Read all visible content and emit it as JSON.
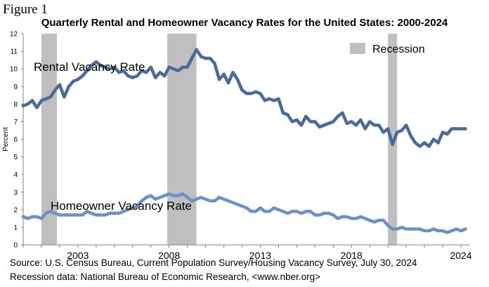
{
  "figure_label": "Figure 1",
  "source_lines": [
    "Source: U.S. Census Bureau, Current Population Survey/Housing Vacancy Survey, July 30, 2024",
    "Recession data: National Bureau of Economic Research, <www.nber.org>"
  ],
  "chart_data": {
    "type": "line",
    "title": "Quarterly Rental and Homeowner Vacancy Rates for the United States: 2000-2024",
    "xlabel": "",
    "ylabel": "Percent",
    "xlim": [
      2000,
      2024.5
    ],
    "ylim": [
      0,
      12
    ],
    "yticks": [
      0,
      1,
      2,
      3,
      4,
      5,
      6,
      7,
      8,
      9,
      10,
      11,
      12
    ],
    "xtick_labels": [
      "2003",
      "2008",
      "2013",
      "2018",
      "2024"
    ],
    "grid": false,
    "legend": {
      "entries": [
        "Recession"
      ],
      "position": "top-right"
    },
    "recessions": [
      {
        "start": 2001.0,
        "end": 2001.85
      },
      {
        "start": 2007.9,
        "end": 2009.5
      },
      {
        "start": 2020.0,
        "end": 2020.5
      }
    ],
    "series": [
      {
        "name": "Rental Vacancy Rate",
        "color": "#4a6a9c",
        "points": [
          [
            2000.0,
            7.9
          ],
          [
            2000.25,
            8.0
          ],
          [
            2000.5,
            8.2
          ],
          [
            2000.75,
            7.8
          ],
          [
            2001.0,
            8.2
          ],
          [
            2001.25,
            8.3
          ],
          [
            2001.5,
            8.4
          ],
          [
            2001.75,
            8.8
          ],
          [
            2002.0,
            9.1
          ],
          [
            2002.25,
            8.4
          ],
          [
            2002.5,
            9.0
          ],
          [
            2002.75,
            9.3
          ],
          [
            2003.0,
            9.4
          ],
          [
            2003.25,
            9.6
          ],
          [
            2003.5,
            9.9
          ],
          [
            2003.75,
            10.2
          ],
          [
            2004.0,
            10.4
          ],
          [
            2004.25,
            10.2
          ],
          [
            2004.5,
            10.1
          ],
          [
            2004.75,
            10.0
          ],
          [
            2005.0,
            10.1
          ],
          [
            2005.25,
            9.8
          ],
          [
            2005.5,
            9.9
          ],
          [
            2005.75,
            9.6
          ],
          [
            2006.0,
            9.5
          ],
          [
            2006.25,
            9.6
          ],
          [
            2006.5,
            9.9
          ],
          [
            2006.75,
            9.8
          ],
          [
            2007.0,
            10.1
          ],
          [
            2007.25,
            9.5
          ],
          [
            2007.5,
            9.8
          ],
          [
            2007.75,
            9.6
          ],
          [
            2008.0,
            10.1
          ],
          [
            2008.25,
            10.0
          ],
          [
            2008.5,
            9.9
          ],
          [
            2008.75,
            10.1
          ],
          [
            2009.0,
            10.1
          ],
          [
            2009.25,
            10.6
          ],
          [
            2009.5,
            11.1
          ],
          [
            2009.75,
            10.7
          ],
          [
            2010.0,
            10.6
          ],
          [
            2010.25,
            10.6
          ],
          [
            2010.5,
            10.3
          ],
          [
            2010.75,
            9.4
          ],
          [
            2011.0,
            9.7
          ],
          [
            2011.25,
            9.2
          ],
          [
            2011.5,
            9.8
          ],
          [
            2011.75,
            9.4
          ],
          [
            2012.0,
            8.8
          ],
          [
            2012.25,
            8.6
          ],
          [
            2012.5,
            8.6
          ],
          [
            2012.75,
            8.7
          ],
          [
            2013.0,
            8.6
          ],
          [
            2013.25,
            8.2
          ],
          [
            2013.5,
            8.3
          ],
          [
            2013.75,
            8.2
          ],
          [
            2014.0,
            8.3
          ],
          [
            2014.25,
            7.5
          ],
          [
            2014.5,
            7.4
          ],
          [
            2014.75,
            7.0
          ],
          [
            2015.0,
            7.1
          ],
          [
            2015.25,
            6.8
          ],
          [
            2015.5,
            7.3
          ],
          [
            2015.75,
            7.0
          ],
          [
            2016.0,
            7.0
          ],
          [
            2016.25,
            6.7
          ],
          [
            2016.5,
            6.8
          ],
          [
            2016.75,
            6.9
          ],
          [
            2017.0,
            7.0
          ],
          [
            2017.25,
            7.3
          ],
          [
            2017.5,
            7.5
          ],
          [
            2017.75,
            6.9
          ],
          [
            2018.0,
            7.0
          ],
          [
            2018.25,
            6.8
          ],
          [
            2018.5,
            7.1
          ],
          [
            2018.75,
            6.6
          ],
          [
            2019.0,
            7.0
          ],
          [
            2019.25,
            6.8
          ],
          [
            2019.5,
            6.8
          ],
          [
            2019.75,
            6.4
          ],
          [
            2020.0,
            6.6
          ],
          [
            2020.25,
            5.7
          ],
          [
            2020.5,
            6.4
          ],
          [
            2020.75,
            6.5
          ],
          [
            2021.0,
            6.8
          ],
          [
            2021.25,
            6.2
          ],
          [
            2021.5,
            5.8
          ],
          [
            2021.75,
            5.6
          ],
          [
            2022.0,
            5.8
          ],
          [
            2022.25,
            5.6
          ],
          [
            2022.5,
            6.0
          ],
          [
            2022.75,
            5.8
          ],
          [
            2023.0,
            6.4
          ],
          [
            2023.25,
            6.3
          ],
          [
            2023.5,
            6.6
          ],
          [
            2023.75,
            6.6
          ],
          [
            2024.0,
            6.6
          ],
          [
            2024.25,
            6.6
          ]
        ]
      },
      {
        "name": "Homeowner Vacancy Rate",
        "color": "#6e90c4",
        "points": [
          [
            2000.0,
            1.6
          ],
          [
            2000.25,
            1.5
          ],
          [
            2000.5,
            1.6
          ],
          [
            2000.75,
            1.6
          ],
          [
            2001.0,
            1.5
          ],
          [
            2001.25,
            1.8
          ],
          [
            2001.5,
            1.9
          ],
          [
            2001.75,
            1.8
          ],
          [
            2002.0,
            1.7
          ],
          [
            2002.25,
            1.7
          ],
          [
            2002.5,
            1.7
          ],
          [
            2002.75,
            1.7
          ],
          [
            2003.0,
            1.7
          ],
          [
            2003.25,
            1.7
          ],
          [
            2003.5,
            1.9
          ],
          [
            2003.75,
            1.8
          ],
          [
            2004.0,
            1.7
          ],
          [
            2004.25,
            1.7
          ],
          [
            2004.5,
            1.7
          ],
          [
            2004.75,
            1.8
          ],
          [
            2005.0,
            1.8
          ],
          [
            2005.25,
            1.8
          ],
          [
            2005.5,
            1.9
          ],
          [
            2005.75,
            2.0
          ],
          [
            2006.0,
            2.1
          ],
          [
            2006.25,
            2.2
          ],
          [
            2006.5,
            2.5
          ],
          [
            2006.75,
            2.7
          ],
          [
            2007.0,
            2.8
          ],
          [
            2007.25,
            2.6
          ],
          [
            2007.5,
            2.7
          ],
          [
            2007.75,
            2.8
          ],
          [
            2008.0,
            2.9
          ],
          [
            2008.25,
            2.8
          ],
          [
            2008.5,
            2.8
          ],
          [
            2008.75,
            2.9
          ],
          [
            2009.0,
            2.7
          ],
          [
            2009.25,
            2.5
          ],
          [
            2009.5,
            2.6
          ],
          [
            2009.75,
            2.7
          ],
          [
            2010.0,
            2.6
          ],
          [
            2010.25,
            2.5
          ],
          [
            2010.5,
            2.5
          ],
          [
            2010.75,
            2.7
          ],
          [
            2011.0,
            2.6
          ],
          [
            2011.25,
            2.5
          ],
          [
            2011.5,
            2.4
          ],
          [
            2011.75,
            2.3
          ],
          [
            2012.0,
            2.2
          ],
          [
            2012.25,
            2.1
          ],
          [
            2012.5,
            1.9
          ],
          [
            2012.75,
            1.9
          ],
          [
            2013.0,
            2.1
          ],
          [
            2013.25,
            1.9
          ],
          [
            2013.5,
            1.9
          ],
          [
            2013.75,
            2.1
          ],
          [
            2014.0,
            2.0
          ],
          [
            2014.25,
            1.9
          ],
          [
            2014.5,
            1.8
          ],
          [
            2014.75,
            1.9
          ],
          [
            2015.0,
            1.9
          ],
          [
            2015.25,
            1.8
          ],
          [
            2015.5,
            1.9
          ],
          [
            2015.75,
            1.9
          ],
          [
            2016.0,
            1.7
          ],
          [
            2016.25,
            1.7
          ],
          [
            2016.5,
            1.8
          ],
          [
            2016.75,
            1.8
          ],
          [
            2017.0,
            1.7
          ],
          [
            2017.25,
            1.5
          ],
          [
            2017.5,
            1.6
          ],
          [
            2017.75,
            1.6
          ],
          [
            2018.0,
            1.5
          ],
          [
            2018.25,
            1.5
          ],
          [
            2018.5,
            1.6
          ],
          [
            2018.75,
            1.5
          ],
          [
            2019.0,
            1.4
          ],
          [
            2019.25,
            1.3
          ],
          [
            2019.5,
            1.4
          ],
          [
            2019.75,
            1.4
          ],
          [
            2020.0,
            1.1
          ],
          [
            2020.25,
            0.9
          ],
          [
            2020.5,
            0.9
          ],
          [
            2020.75,
            1.0
          ],
          [
            2021.0,
            0.9
          ],
          [
            2021.25,
            0.9
          ],
          [
            2021.5,
            0.9
          ],
          [
            2021.75,
            0.9
          ],
          [
            2022.0,
            0.8
          ],
          [
            2022.25,
            0.8
          ],
          [
            2022.5,
            0.9
          ],
          [
            2022.75,
            0.8
          ],
          [
            2023.0,
            0.8
          ],
          [
            2023.25,
            0.7
          ],
          [
            2023.5,
            0.8
          ],
          [
            2023.75,
            0.9
          ],
          [
            2024.0,
            0.8
          ],
          [
            2024.25,
            0.9
          ]
        ]
      }
    ]
  },
  "colors": {
    "recession_band": "#bfbfbf",
    "axis": "#808080",
    "rental_line": "#4a6a9c",
    "homeowner_line": "#6e90c4"
  }
}
